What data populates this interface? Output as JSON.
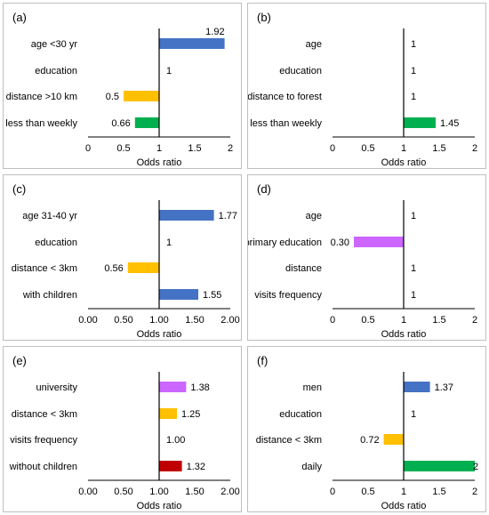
{
  "chart_data": [
    {
      "type": "bar",
      "orientation": "horizontal",
      "panel_label": "(a)",
      "categories": [
        "age <30 yr",
        "education",
        "distance >10 km",
        "less than weekly"
      ],
      "values": [
        1.92,
        1,
        0.5,
        0.66
      ],
      "value_labels": [
        "1.92",
        "1",
        "0.5",
        "0.66"
      ],
      "colors": [
        "#4472c4",
        null,
        "#ffc000",
        "#00b050"
      ],
      "reference": 1,
      "xlim": [
        0,
        2
      ],
      "ticks": [
        0,
        0.5,
        1,
        1.5,
        2
      ],
      "tick_labels": [
        "0",
        "0.5",
        "1",
        "1.5",
        "2"
      ],
      "xlabel": "Odds ratio"
    },
    {
      "type": "bar",
      "orientation": "horizontal",
      "panel_label": "(b)",
      "categories": [
        "age",
        "education",
        "distance to forest",
        "less than weekly"
      ],
      "values": [
        1,
        1,
        1,
        1.45
      ],
      "value_labels": [
        "1",
        "1",
        "1",
        "1.45"
      ],
      "colors": [
        null,
        null,
        null,
        "#00b050"
      ],
      "reference": 1,
      "xlim": [
        0,
        2
      ],
      "ticks": [
        0,
        0.5,
        1,
        1.5,
        2
      ],
      "tick_labels": [
        "0",
        "0.5",
        "1",
        "1.5",
        "2"
      ],
      "xlabel": "Odds ratio"
    },
    {
      "type": "bar",
      "orientation": "horizontal",
      "panel_label": "(c)",
      "categories": [
        "age 31-40 yr",
        "education",
        "distance < 3km",
        "with children"
      ],
      "values": [
        1.77,
        1,
        0.56,
        1.55
      ],
      "value_labels": [
        "1.77",
        "1",
        "0.56",
        "1.55"
      ],
      "colors": [
        "#4472c4",
        null,
        "#ffc000",
        "#4472c4"
      ],
      "reference": 1,
      "xlim": [
        0,
        2
      ],
      "ticks": [
        0,
        0.5,
        1,
        1.5,
        2
      ],
      "tick_labels": [
        "0.00",
        "0.50",
        "1.00",
        "1.50",
        "2.00"
      ],
      "xlabel": "Odds ratio"
    },
    {
      "type": "bar",
      "orientation": "horizontal",
      "panel_label": "(d)",
      "categories": [
        "age",
        "primary education",
        "distance",
        "visits frequency"
      ],
      "values": [
        1,
        0.3,
        1,
        1
      ],
      "value_labels": [
        "1",
        "0.30",
        "1",
        "1"
      ],
      "colors": [
        null,
        "#cc66ff",
        null,
        null
      ],
      "reference": 1,
      "xlim": [
        0,
        2
      ],
      "ticks": [
        0,
        0.5,
        1,
        1.5,
        2
      ],
      "tick_labels": [
        "0",
        "0.5",
        "1",
        "1.5",
        "2"
      ],
      "xlabel": "Odds ratio"
    },
    {
      "type": "bar",
      "orientation": "horizontal",
      "panel_label": "(e)",
      "categories": [
        "university",
        "distance < 3km",
        "visits frequency",
        "without children"
      ],
      "values": [
        1.38,
        1.25,
        1.0,
        1.32
      ],
      "value_labels": [
        "1.38",
        "1.25",
        "1.00",
        "1.32"
      ],
      "colors": [
        "#cc66ff",
        "#ffc000",
        null,
        "#c00000"
      ],
      "reference": 1,
      "xlim": [
        0,
        2
      ],
      "ticks": [
        0,
        0.5,
        1,
        1.5,
        2
      ],
      "tick_labels": [
        "0.00",
        "0.50",
        "1.00",
        "1.50",
        "2.00"
      ],
      "xlabel": "Odds ratio"
    },
    {
      "type": "bar",
      "orientation": "horizontal",
      "panel_label": "(f)",
      "categories": [
        "men",
        "education",
        "distance < 3km",
        "daily"
      ],
      "values": [
        1.37,
        1,
        0.72,
        2
      ],
      "value_labels": [
        "1.37",
        "1",
        "0.72",
        "2"
      ],
      "colors": [
        "#4472c4",
        null,
        "#ffc000",
        "#00b050"
      ],
      "reference": 1,
      "xlim": [
        0,
        2
      ],
      "ticks": [
        0,
        0.5,
        1,
        1.5,
        2
      ],
      "tick_labels": [
        "0",
        "0.5",
        "1",
        "1.5",
        "2"
      ],
      "xlabel": "Odds ratio"
    }
  ]
}
